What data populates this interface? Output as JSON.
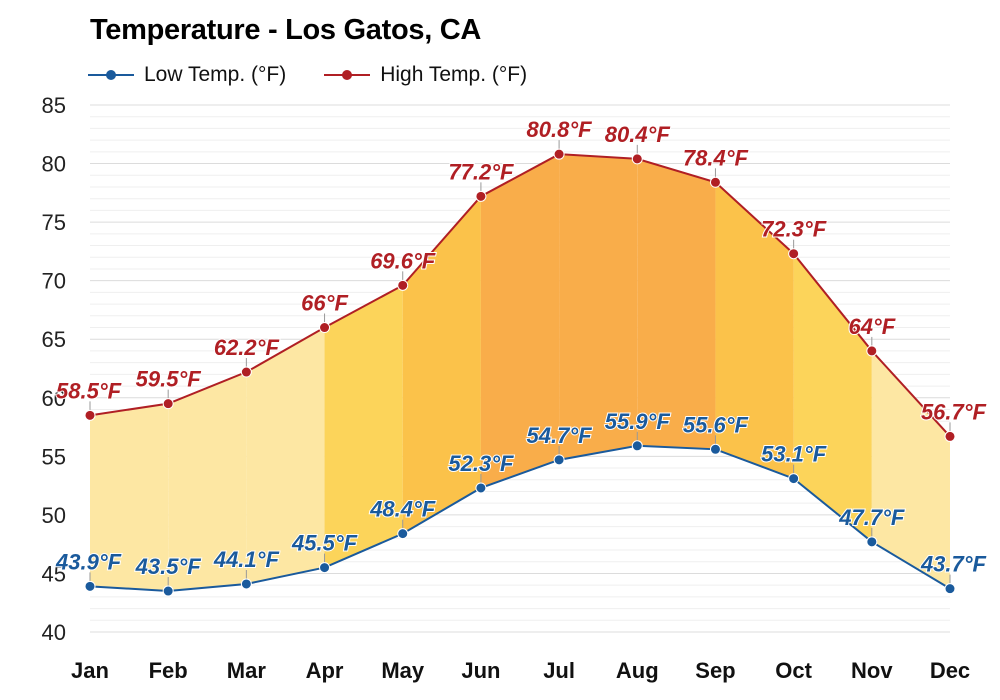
{
  "colors": {
    "low": "#1a5a9c",
    "high": "#b01f24",
    "grid": "#e2e2e2",
    "fill_cool": "#fde7a3",
    "fill_mild": "#fcd45a",
    "fill_warm": "#fbc24a",
    "fill_hot": "#f9ad4a"
  },
  "chart_data": {
    "type": "line",
    "title": "Temperature - Los Gatos, CA",
    "categories": [
      "Jan",
      "Feb",
      "Mar",
      "Apr",
      "May",
      "Jun",
      "Jul",
      "Aug",
      "Sep",
      "Oct",
      "Nov",
      "Dec"
    ],
    "series": [
      {
        "name": "Low Temp. (°F)",
        "values": [
          43.9,
          43.5,
          44.1,
          45.5,
          48.4,
          52.3,
          54.7,
          55.9,
          55.6,
          53.1,
          47.7,
          43.7
        ],
        "labels": [
          "43.9°F",
          "43.5°F",
          "44.1°F",
          "45.5°F",
          "48.4°F",
          "52.3°F",
          "54.7°F",
          "55.9°F",
          "55.6°F",
          "53.1°F",
          "47.7°F",
          "43.7°F"
        ]
      },
      {
        "name": "High Temp. (°F)",
        "values": [
          58.5,
          59.5,
          62.2,
          66.0,
          69.6,
          77.2,
          80.8,
          80.4,
          78.4,
          72.3,
          64.0,
          56.7
        ],
        "labels": [
          "58.5°F",
          "59.5°F",
          "62.2°F",
          "66°F",
          "69.6°F",
          "77.2°F",
          "80.8°F",
          "80.4°F",
          "78.4°F",
          "72.3°F",
          "64°F",
          "56.7°F"
        ]
      }
    ],
    "yticks": [
      "85",
      "80",
      "75",
      "70",
      "65",
      "60",
      "55",
      "50",
      "45",
      "40"
    ],
    "ylim": [
      40,
      85
    ],
    "grid": true,
    "legend": "top-left",
    "shaded_area": "between low and high"
  }
}
